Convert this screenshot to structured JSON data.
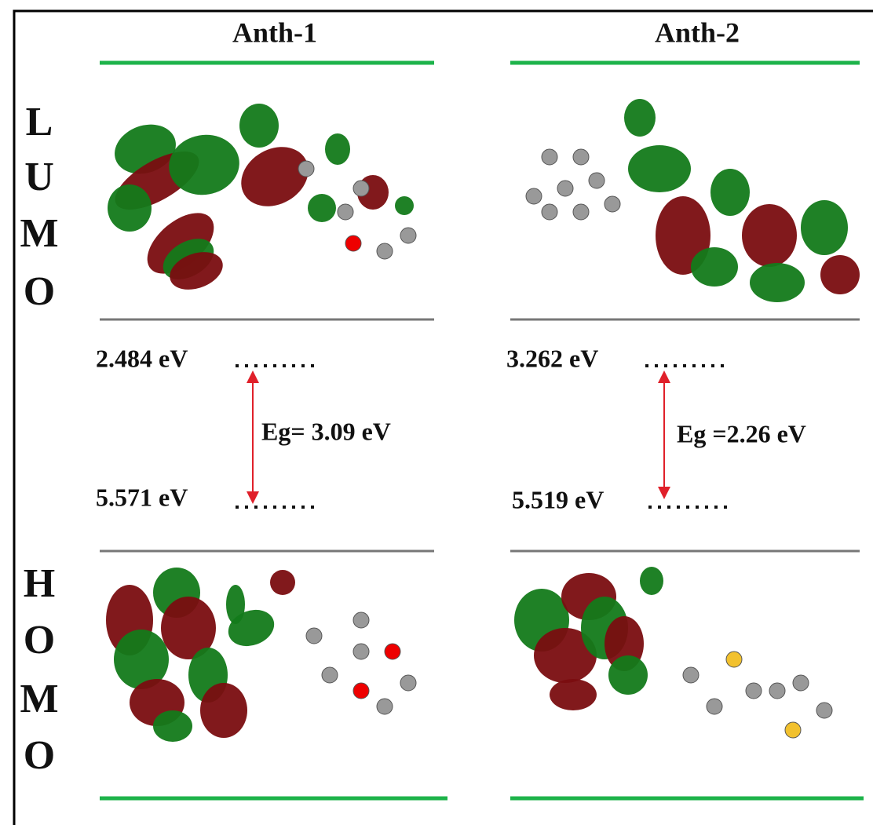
{
  "columns": [
    {
      "title": "Anth-1",
      "lumo": "2.484 eV",
      "homo": "5.571 eV",
      "gap": "Eg= 3.09 eV"
    },
    {
      "title": "Anth-2",
      "lumo": "3.262 eV",
      "homo": "5.519 eV",
      "gap": "Eg =2.26 eV"
    }
  ],
  "side_labels": {
    "lumo": [
      "L",
      "U",
      "M",
      "O"
    ],
    "homo": [
      "H",
      "O",
      "M",
      "O"
    ]
  }
}
